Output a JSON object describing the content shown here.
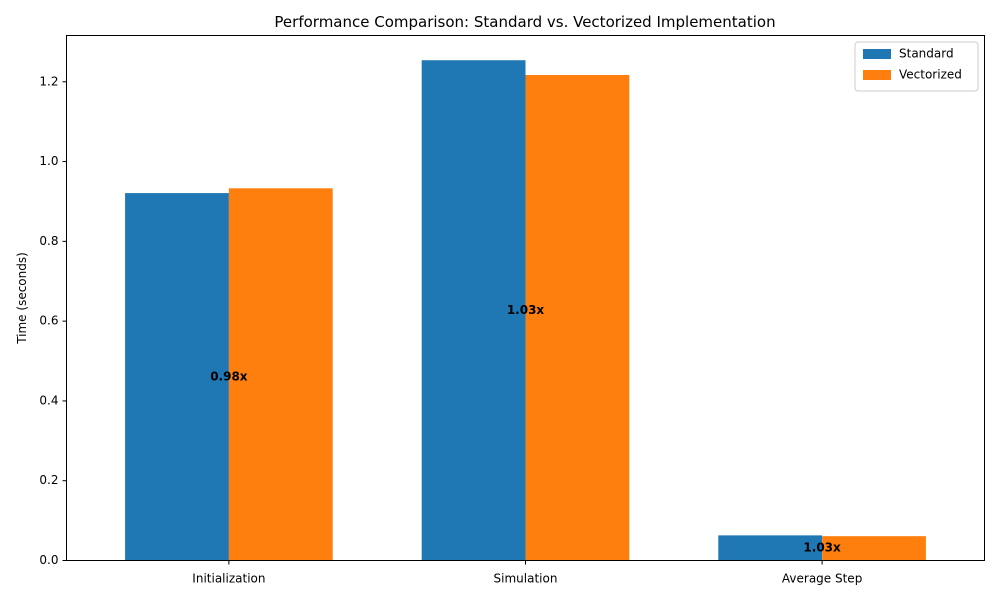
{
  "chart_data": {
    "type": "bar",
    "title": "Performance Comparison: Standard vs. Vectorized Implementation",
    "xlabel": "",
    "ylabel": "Time (seconds)",
    "categories": [
      "Initialization",
      "Simulation",
      "Average Step"
    ],
    "series": [
      {
        "name": "Standard",
        "color": "#1f77b4",
        "values": [
          0.921,
          1.254,
          0.063
        ]
      },
      {
        "name": "Vectorized",
        "color": "#ff7f0e",
        "values": [
          0.933,
          1.217,
          0.061
        ]
      }
    ],
    "annotations": [
      "0.98x",
      "1.03x",
      "1.03x"
    ],
    "ylim": [
      0,
      1.316
    ],
    "yticks": [
      0.0,
      0.2,
      0.4,
      0.6,
      0.8,
      1.0,
      1.2
    ],
    "ytick_labels": [
      "0.0",
      "0.2",
      "0.4",
      "0.6",
      "0.8",
      "1.0",
      "1.2"
    ],
    "grid": false,
    "legend_position": "top-right"
  }
}
